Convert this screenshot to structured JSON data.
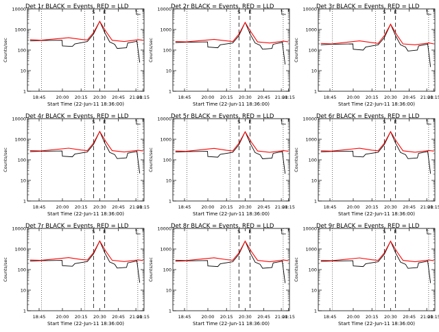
{
  "chart_data": [
    {
      "type": "line",
      "title": "Det 1r BLACK = Events, RED = LLD",
      "xlabel": "Start Time (22-Jun-11 18:36:00)",
      "ylabel": "Counts/sec",
      "x_ticks": [
        "18:45",
        "20:00",
        "20:15",
        "20:30",
        "20:45",
        "21:00",
        "21:15"
      ],
      "y_ticks": [
        "1",
        "10",
        "100",
        "1000",
        "10000"
      ],
      "ylim": [
        1,
        10000
      ],
      "ylog": true,
      "markers": [
        "S",
        "E"
      ],
      "series": [
        {
          "name": "BLACK = Events",
          "color": "#000000",
          "x": [
            "18:38",
            "18:50",
            "19:59",
            "20:00",
            "20:08",
            "20:10",
            "20:20",
            "20:25",
            "20:30",
            "20:34",
            "20:38",
            "20:42",
            "20:44",
            "20:52",
            "20:53",
            "21:00",
            "21:02",
            "21:08"
          ],
          "y": [
            280,
            290,
            300,
            160,
            150,
            200,
            260,
            600,
            2500,
            700,
            250,
            190,
            120,
            130,
            220,
            260,
            280,
            25
          ]
        },
        {
          "name": "RED = LLD",
          "color": "#ff0000",
          "x": [
            "18:38",
            "18:50",
            "20:05",
            "20:15",
            "20:20",
            "20:25",
            "20:30",
            "20:35",
            "20:40",
            "20:50",
            "21:05",
            "21:15"
          ],
          "y": [
            320,
            300,
            400,
            330,
            310,
            700,
            2500,
            800,
            300,
            260,
            320,
            300
          ]
        }
      ]
    },
    {
      "type": "line",
      "title": "Det 2r BLACK = Events, RED = LLD",
      "xlabel": "Start Time (22-Jun-11 18:36:00)",
      "ylabel": "Counts/sec",
      "x_ticks": [
        "18:45",
        "20:00",
        "20:15",
        "20:30",
        "20:45",
        "21:00",
        "21:15"
      ],
      "y_ticks": [
        "1",
        "10",
        "100",
        "1000",
        "10000"
      ],
      "ylim": [
        1,
        10000
      ],
      "ylog": true,
      "markers": [
        "S",
        "E"
      ],
      "series": [
        {
          "name": "BLACK = Events",
          "color": "#000000",
          "x": [
            "18:38",
            "18:50",
            "19:59",
            "20:00",
            "20:08",
            "20:10",
            "20:20",
            "20:25",
            "20:30",
            "20:34",
            "20:38",
            "20:42",
            "20:44",
            "20:52",
            "20:53",
            "21:00",
            "21:02",
            "21:08"
          ],
          "y": [
            230,
            240,
            250,
            140,
            130,
            180,
            220,
            500,
            2200,
            600,
            220,
            170,
            110,
            120,
            190,
            230,
            240,
            20
          ]
        },
        {
          "name": "RED = LLD",
          "color": "#ff0000",
          "x": [
            "18:38",
            "18:50",
            "20:05",
            "20:15",
            "20:20",
            "20:25",
            "20:30",
            "20:35",
            "20:40",
            "20:50",
            "21:05",
            "21:15"
          ],
          "y": [
            260,
            250,
            330,
            280,
            260,
            600,
            2200,
            700,
            250,
            220,
            270,
            250
          ]
        }
      ]
    },
    {
      "type": "line",
      "title": "Det 3r BLACK = Events, RED = LLD",
      "xlabel": "Start Time (22-Jun-11 18:36:00)",
      "ylabel": "Counts/sec",
      "x_ticks": [
        "18:45",
        "20:00",
        "20:15",
        "20:30",
        "20:45",
        "21:00",
        "21:15"
      ],
      "y_ticks": [
        "1",
        "10",
        "100",
        "1000",
        "10000"
      ],
      "ylim": [
        1,
        10000
      ],
      "ylog": true,
      "markers": [
        "S",
        "E"
      ],
      "series": [
        {
          "name": "BLACK = Events",
          "color": "#000000",
          "x": [
            "18:38",
            "18:50",
            "19:59",
            "20:00",
            "20:08",
            "20:10",
            "20:20",
            "20:25",
            "20:30",
            "20:34",
            "20:38",
            "20:42",
            "20:44",
            "20:52",
            "20:53",
            "21:00",
            "21:02",
            "21:08"
          ],
          "y": [
            180,
            190,
            200,
            110,
            100,
            140,
            180,
            400,
            1800,
            500,
            180,
            140,
            90,
            100,
            160,
            190,
            200,
            15
          ]
        },
        {
          "name": "RED = LLD",
          "color": "#ff0000",
          "x": [
            "18:38",
            "18:50",
            "20:05",
            "20:15",
            "20:20",
            "20:25",
            "20:30",
            "20:35",
            "20:40",
            "20:50",
            "21:05",
            "21:15"
          ],
          "y": [
            210,
            200,
            280,
            230,
            210,
            500,
            1800,
            550,
            200,
            180,
            220,
            200
          ]
        }
      ]
    },
    {
      "type": "line",
      "title": "Det 4r BLACK = Events, RED = LLD",
      "xlabel": "Start Time (22-Jun-11 18:36:00)",
      "ylabel": "Counts/sec",
      "x_ticks": [
        "18:45",
        "20:00",
        "20:15",
        "20:30",
        "20:45",
        "21:00",
        "21:15"
      ],
      "y_ticks": [
        "1",
        "10",
        "100",
        "1000",
        "10000"
      ],
      "ylim": [
        1,
        10000
      ],
      "ylog": true,
      "markers": [
        "S",
        "E"
      ],
      "series": [
        {
          "name": "BLACK = Events",
          "color": "#000000",
          "x": [
            "18:38",
            "18:50",
            "19:59",
            "20:00",
            "20:08",
            "20:10",
            "20:20",
            "20:25",
            "20:30",
            "20:34",
            "20:38",
            "20:42",
            "20:44",
            "20:52",
            "20:53",
            "21:00",
            "21:02",
            "21:08"
          ],
          "y": [
            250,
            260,
            270,
            150,
            140,
            190,
            240,
            560,
            2400,
            650,
            230,
            180,
            115,
            125,
            210,
            250,
            260,
            22
          ]
        },
        {
          "name": "RED = LLD",
          "color": "#ff0000",
          "x": [
            "18:38",
            "18:50",
            "20:05",
            "20:15",
            "20:20",
            "20:25",
            "20:30",
            "20:35",
            "20:40",
            "20:50",
            "21:05",
            "21:15"
          ],
          "y": [
            280,
            270,
            370,
            300,
            280,
            650,
            2400,
            750,
            280,
            240,
            290,
            270
          ]
        }
      ]
    },
    {
      "type": "line",
      "title": "Det 5r BLACK = Events, RED = LLD",
      "xlabel": "Start Time (22-Jun-11 18:36:00)",
      "ylabel": "Counts/sec",
      "x_ticks": [
        "18:45",
        "20:00",
        "20:15",
        "20:30",
        "20:45",
        "21:00",
        "21:15"
      ],
      "y_ticks": [
        "1",
        "10",
        "100",
        "1000",
        "10000"
      ],
      "ylim": [
        1,
        10000
      ],
      "ylog": true,
      "markers": [
        "S",
        "E"
      ],
      "series": [
        {
          "name": "BLACK = Events",
          "color": "#000000",
          "x": [
            "18:38",
            "18:50",
            "19:59",
            "20:00",
            "20:08",
            "20:10",
            "20:20",
            "20:25",
            "20:30",
            "20:34",
            "20:38",
            "20:42",
            "20:44",
            "20:52",
            "20:53",
            "21:00",
            "21:02",
            "21:08"
          ],
          "y": [
            240,
            250,
            260,
            145,
            135,
            185,
            230,
            540,
            2300,
            640,
            225,
            175,
            112,
            122,
            205,
            245,
            255,
            21
          ]
        },
        {
          "name": "RED = LLD",
          "color": "#ff0000",
          "x": [
            "18:38",
            "18:50",
            "20:05",
            "20:15",
            "20:20",
            "20:25",
            "20:30",
            "20:35",
            "20:40",
            "20:50",
            "21:05",
            "21:15"
          ],
          "y": [
            270,
            260,
            360,
            290,
            270,
            640,
            2300,
            720,
            270,
            230,
            280,
            260
          ]
        }
      ]
    },
    {
      "type": "line",
      "title": "Det 6r BLACK = Events, RED = LLD",
      "xlabel": "Start Time (22-Jun-11 18:36:00)",
      "ylabel": "Counts/sec",
      "x_ticks": [
        "18:45",
        "20:00",
        "20:15",
        "20:30",
        "20:45",
        "21:00",
        "21:15"
      ],
      "y_ticks": [
        "1",
        "10",
        "100",
        "1000",
        "10000"
      ],
      "ylim": [
        1,
        10000
      ],
      "ylog": true,
      "markers": [
        "S",
        "E"
      ],
      "series": [
        {
          "name": "BLACK = Events",
          "color": "#000000",
          "x": [
            "18:38",
            "18:50",
            "19:59",
            "20:00",
            "20:08",
            "20:10",
            "20:20",
            "20:25",
            "20:30",
            "20:34",
            "20:38",
            "20:42",
            "20:44",
            "20:52",
            "20:53",
            "21:00",
            "21:02",
            "21:08"
          ],
          "y": [
            245,
            255,
            265,
            148,
            138,
            188,
            235,
            550,
            2350,
            645,
            228,
            178,
            114,
            124,
            208,
            248,
            258,
            21
          ]
        },
        {
          "name": "RED = LLD",
          "color": "#ff0000",
          "x": [
            "18:38",
            "18:50",
            "20:05",
            "20:15",
            "20:20",
            "20:25",
            "20:30",
            "20:35",
            "20:40",
            "20:50",
            "21:05",
            "21:15"
          ],
          "y": [
            275,
            265,
            365,
            295,
            275,
            645,
            2350,
            735,
            275,
            235,
            285,
            265
          ]
        }
      ]
    },
    {
      "type": "line",
      "title": "Det 7r BLACK = Events, RED = LLD",
      "xlabel": "Start Time (22-Jun-11 18:36:00)",
      "ylabel": "Counts/sec",
      "x_ticks": [
        "18:45",
        "20:00",
        "20:15",
        "20:30",
        "20:45",
        "21:00",
        "21:15"
      ],
      "y_ticks": [
        "1",
        "10",
        "100",
        "1000",
        "10000"
      ],
      "ylim": [
        1,
        10000
      ],
      "ylog": true,
      "markers": [
        "S",
        "E"
      ],
      "series": [
        {
          "name": "BLACK = Events",
          "color": "#000000",
          "x": [
            "18:38",
            "18:50",
            "19:59",
            "20:00",
            "20:08",
            "20:10",
            "20:20",
            "20:25",
            "20:30",
            "20:34",
            "20:38",
            "20:42",
            "20:44",
            "20:52",
            "20:53",
            "21:00",
            "21:02",
            "21:08"
          ],
          "y": [
            260,
            270,
            280,
            155,
            145,
            195,
            245,
            570,
            2450,
            660,
            235,
            182,
            118,
            128,
            212,
            255,
            265,
            23
          ]
        },
        {
          "name": "RED = LLD",
          "color": "#ff0000",
          "x": [
            "18:38",
            "18:50",
            "20:05",
            "20:15",
            "20:20",
            "20:25",
            "20:30",
            "20:35",
            "20:40",
            "20:50",
            "21:05",
            "21:15"
          ],
          "y": [
            290,
            280,
            380,
            310,
            290,
            660,
            2450,
            760,
            285,
            245,
            295,
            275
          ]
        }
      ]
    },
    {
      "type": "line",
      "title": "Det 8r BLACK = Events, RED = LLD",
      "xlabel": "Start Time (22-Jun-11 18:36:00)",
      "ylabel": "Counts/sec",
      "x_ticks": [
        "18:45",
        "20:00",
        "20:15",
        "20:30",
        "20:45",
        "21:00",
        "21:15"
      ],
      "y_ticks": [
        "1",
        "10",
        "100",
        "1000",
        "10000"
      ],
      "ylim": [
        1,
        10000
      ],
      "ylog": true,
      "markers": [
        "S",
        "E"
      ],
      "series": [
        {
          "name": "BLACK = Events",
          "color": "#000000",
          "x": [
            "18:38",
            "18:50",
            "19:59",
            "20:00",
            "20:08",
            "20:10",
            "20:20",
            "20:25",
            "20:30",
            "20:34",
            "20:38",
            "20:42",
            "20:44",
            "20:52",
            "20:53",
            "21:00",
            "21:02",
            "21:08"
          ],
          "y": [
            255,
            265,
            275,
            150,
            140,
            190,
            240,
            560,
            2400,
            650,
            230,
            180,
            116,
            126,
            210,
            250,
            260,
            22
          ]
        },
        {
          "name": "RED = LLD",
          "color": "#ff0000",
          "x": [
            "18:38",
            "18:50",
            "20:05",
            "20:15",
            "20:20",
            "20:25",
            "20:30",
            "20:35",
            "20:40",
            "20:50",
            "21:05",
            "21:15"
          ],
          "y": [
            285,
            275,
            375,
            305,
            285,
            650,
            2400,
            750,
            280,
            240,
            290,
            270
          ]
        }
      ]
    },
    {
      "type": "line",
      "title": "Det 9r BLACK = Events, RED = LLD",
      "xlabel": "Start Time (22-Jun-11 18:36:00)",
      "ylabel": "Counts/sec",
      "x_ticks": [
        "18:45",
        "20:00",
        "20:15",
        "20:30",
        "20:45",
        "21:00",
        "21:15"
      ],
      "y_ticks": [
        "1",
        "10",
        "100",
        "1000",
        "10000"
      ],
      "ylim": [
        1,
        10000
      ],
      "ylog": true,
      "markers": [
        "S",
        "E"
      ],
      "series": [
        {
          "name": "BLACK = Events",
          "color": "#000000",
          "x": [
            "18:38",
            "18:50",
            "19:59",
            "20:00",
            "20:08",
            "20:10",
            "20:20",
            "20:25",
            "20:30",
            "20:34",
            "20:38",
            "20:42",
            "20:44",
            "20:52",
            "20:53",
            "21:00",
            "21:02",
            "21:08"
          ],
          "y": [
            250,
            260,
            270,
            150,
            140,
            190,
            240,
            560,
            2400,
            650,
            230,
            180,
            115,
            125,
            210,
            250,
            260,
            22
          ]
        },
        {
          "name": "RED = LLD",
          "color": "#ff0000",
          "x": [
            "18:38",
            "18:50",
            "20:05",
            "20:15",
            "20:20",
            "20:25",
            "20:30",
            "20:35",
            "20:40",
            "20:50",
            "21:05",
            "21:15"
          ],
          "y": [
            280,
            270,
            370,
            300,
            280,
            650,
            2400,
            750,
            280,
            240,
            290,
            270
          ]
        }
      ]
    }
  ]
}
